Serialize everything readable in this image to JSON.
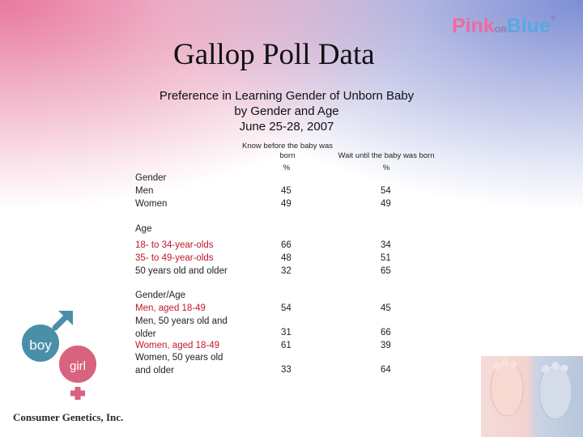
{
  "title": "Gallop Poll Data",
  "logo": {
    "pink": "Pink",
    "or": "OR",
    "blue": "Blue",
    "reg": "®"
  },
  "subtitle": {
    "line1": "Preference in Learning Gender of Unborn Baby",
    "line2": "by Gender and Age",
    "line3": "June 25-28, 2007"
  },
  "columns": {
    "col1_line1": "Know before the baby was",
    "col1_line2": "born",
    "col2": "Wait until the baby was born",
    "unit1": "%",
    "unit2": "%"
  },
  "sections": {
    "gender": {
      "label": "Gender",
      "rows": [
        {
          "label": "Men",
          "know": "45",
          "wait": "54"
        },
        {
          "label": "Women",
          "know": "49",
          "wait": "49"
        }
      ]
    },
    "age": {
      "label": "Age",
      "rows": [
        {
          "label": "18- to 34-year-olds",
          "know": "66",
          "wait": "34"
        },
        {
          "label": "35- to 49-year-olds",
          "know": "48",
          "wait": "51"
        },
        {
          "label": "50 years old and older",
          "know": "32",
          "wait": "65"
        }
      ]
    },
    "gender_age": {
      "label": "Gender/Age",
      "rows": [
        {
          "label": "Men, aged 18-49",
          "know": "54",
          "wait": "45"
        },
        {
          "label_line1": "Men, 50 years old and",
          "label_line2": "older",
          "know": "31",
          "wait": "66"
        },
        {
          "label": "Women, aged 18-49",
          "know": "61",
          "wait": "39"
        },
        {
          "label_line1": "Women, 50 years old",
          "label_line2": "and older",
          "know": "33",
          "wait": "64"
        }
      ]
    }
  },
  "boy_girl": {
    "boy": "boy",
    "girl": "girl"
  },
  "company": "Consumer Genetics, Inc.",
  "colors": {
    "red": "#c0182a",
    "pink": "#f06aa0",
    "blue": "#5aa9df",
    "boy_circle": "#4a8fa8",
    "girl_circle": "#d9627f"
  }
}
